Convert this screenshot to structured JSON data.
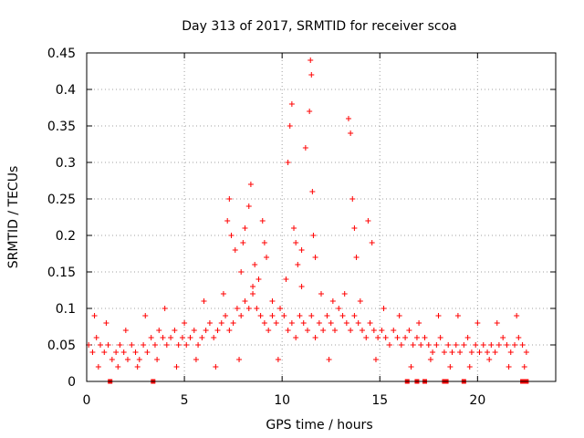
{
  "chart_data": {
    "type": "scatter",
    "title": "Day 313 of 2017, SRMTID for receiver scoa",
    "xlabel": "GPS time / hours",
    "ylabel": "SRMTID / TECUs",
    "xlim": [
      0,
      24
    ],
    "ylim": [
      0,
      0.45
    ],
    "x_ticks": [
      0,
      5,
      10,
      15,
      20
    ],
    "x_tick_labels": [
      "0",
      "5",
      "10",
      "15",
      "20"
    ],
    "y_ticks": [
      0,
      0.05,
      0.1,
      0.15,
      0.2,
      0.25,
      0.3,
      0.35,
      0.4,
      0.45
    ],
    "y_tick_labels": [
      "0",
      "0.05",
      "0.1",
      "0.15",
      "0.2",
      "0.25",
      "0.3",
      "0.35",
      "0.4",
      "0.45"
    ],
    "grid": true,
    "marker": "+",
    "color": "#ff0000",
    "series": [
      {
        "name": "SRMTID",
        "x": [
          0.1,
          0.3,
          0.5,
          0.7,
          0.9,
          1.1,
          1.3,
          1.5,
          1.7,
          1.9,
          2.1,
          2.3,
          2.5,
          2.7,
          2.9,
          3.1,
          3.3,
          3.5,
          3.7,
          3.9,
          4.1,
          4.3,
          4.5,
          4.7,
          4.9,
          5.1,
          5.3,
          5.5,
          5.7,
          5.9,
          6.1,
          6.3,
          6.5,
          6.7,
          6.9,
          7.1,
          7.3,
          7.5,
          7.7,
          7.9,
          8.1,
          8.3,
          8.5,
          8.7,
          8.9,
          9.1,
          9.3,
          9.5,
          9.7,
          9.9,
          10.1,
          10.3,
          10.5,
          10.7,
          10.9,
          11.1,
          11.3,
          11.5,
          11.7,
          11.9,
          12.1,
          12.3,
          12.5,
          12.7,
          12.9,
          13.1,
          13.3,
          13.5,
          13.7,
          13.9,
          14.1,
          14.3,
          14.5,
          14.7,
          14.9,
          15.1,
          15.3,
          15.5,
          15.7,
          15.9,
          16.1,
          16.3,
          16.5,
          16.7,
          16.9,
          17.1,
          17.3,
          17.5,
          17.7,
          17.9,
          18.1,
          18.3,
          18.5,
          18.7,
          18.9,
          19.1,
          19.3,
          19.5,
          19.7,
          19.9,
          20.1,
          20.3,
          20.5,
          20.7,
          20.9,
          21.1,
          21.3,
          21.5,
          21.7,
          21.9,
          22.1,
          22.3,
          22.5,
          7.2,
          7.3,
          7.4,
          7.6,
          7.9,
          8.0,
          8.1,
          8.3,
          8.4,
          8.6,
          8.8,
          9.0,
          9.1,
          9.2,
          10.3,
          10.4,
          10.5,
          10.6,
          10.7,
          10.8,
          11.0,
          11.2,
          11.4,
          11.45,
          11.5,
          11.55,
          11.6,
          11.7,
          13.4,
          13.5,
          13.6,
          13.7,
          13.8,
          14.4,
          14.6,
          0.4,
          1.0,
          2.0,
          3.0,
          4.0,
          5.0,
          6.0,
          7.0,
          8.5,
          9.5,
          10.2,
          11.0,
          12.0,
          12.6,
          13.2,
          14.0,
          15.2,
          16.0,
          17.0,
          18.0,
          19.0,
          20.0,
          21.0,
          22.0,
          0.6,
          1.6,
          2.6,
          3.6,
          4.6,
          5.6,
          6.6,
          7.8,
          9.8,
          12.4,
          14.8,
          16.6,
          17.6,
          18.6,
          19.6,
          20.6,
          21.6,
          22.4
        ],
        "y": [
          0.05,
          0.04,
          0.06,
          0.05,
          0.04,
          0.05,
          0.03,
          0.04,
          0.05,
          0.04,
          0.03,
          0.05,
          0.04,
          0.03,
          0.05,
          0.04,
          0.06,
          0.05,
          0.07,
          0.06,
          0.05,
          0.06,
          0.07,
          0.05,
          0.06,
          0.05,
          0.06,
          0.07,
          0.05,
          0.06,
          0.07,
          0.08,
          0.06,
          0.07,
          0.08,
          0.09,
          0.07,
          0.08,
          0.1,
          0.09,
          0.11,
          0.1,
          0.12,
          0.1,
          0.09,
          0.08,
          0.07,
          0.09,
          0.08,
          0.1,
          0.09,
          0.07,
          0.08,
          0.06,
          0.09,
          0.08,
          0.07,
          0.09,
          0.06,
          0.08,
          0.07,
          0.09,
          0.08,
          0.07,
          0.1,
          0.09,
          0.08,
          0.07,
          0.09,
          0.08,
          0.07,
          0.06,
          0.08,
          0.07,
          0.06,
          0.07,
          0.06,
          0.05,
          0.07,
          0.06,
          0.05,
          0.06,
          0.07,
          0.05,
          0.06,
          0.05,
          0.06,
          0.05,
          0.04,
          0.05,
          0.06,
          0.04,
          0.05,
          0.04,
          0.05,
          0.04,
          0.05,
          0.06,
          0.04,
          0.05,
          0.04,
          0.05,
          0.04,
          0.05,
          0.04,
          0.05,
          0.06,
          0.05,
          0.04,
          0.05,
          0.06,
          0.05,
          0.04,
          0.22,
          0.25,
          0.2,
          0.18,
          0.15,
          0.19,
          0.21,
          0.24,
          0.27,
          0.16,
          0.14,
          0.22,
          0.19,
          0.17,
          0.3,
          0.35,
          0.38,
          0.21,
          0.19,
          0.16,
          0.18,
          0.32,
          0.37,
          0.44,
          0.42,
          0.26,
          0.2,
          0.17,
          0.36,
          0.34,
          0.25,
          0.21,
          0.17,
          0.22,
          0.19,
          0.09,
          0.08,
          0.07,
          0.09,
          0.1,
          0.08,
          0.11,
          0.12,
          0.13,
          0.11,
          0.14,
          0.13,
          0.12,
          0.11,
          0.12,
          0.11,
          0.1,
          0.09,
          0.08,
          0.09,
          0.09,
          0.08,
          0.08,
          0.09,
          0.02,
          0.02,
          0.02,
          0.03,
          0.02,
          0.03,
          0.02,
          0.03,
          0.03,
          0.03,
          0.03,
          0.02,
          0.03,
          0.02,
          0.02,
          0.03,
          0.02,
          0.02
        ],
        "zero_markers_x": [
          1.2,
          3.4,
          16.4,
          16.9,
          17.3,
          18.3,
          18.4,
          19.3,
          22.3,
          22.5
        ]
      }
    ]
  }
}
